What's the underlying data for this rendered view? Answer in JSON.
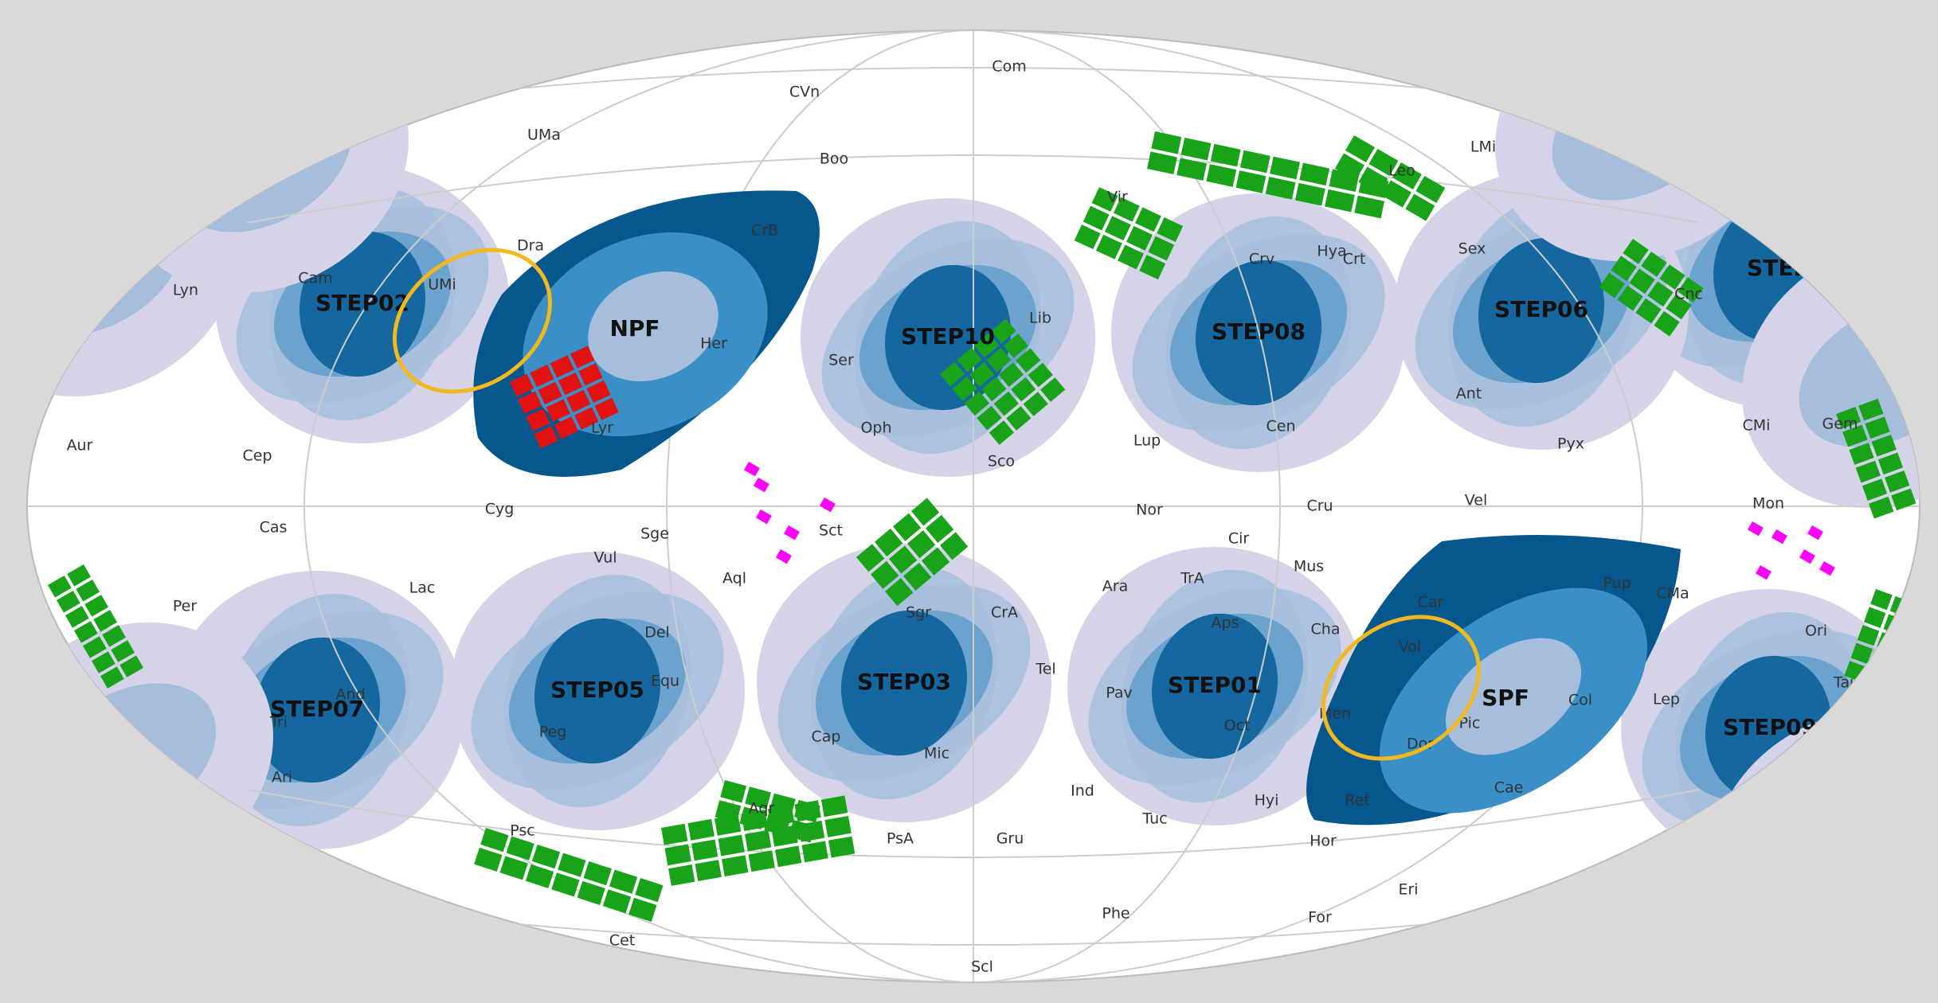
{
  "colors": {
    "background": "#d9d9d9",
    "sky": "#ffffff",
    "grid": "#cccccc",
    "outer": "#d5d3e8",
    "ring2": "#a6bedc",
    "ring3": "#5e9ccb",
    "core": "#15679f",
    "deep": "#05578e",
    "kepler": "#19a319",
    "pointing": "#e31212",
    "magenta": "#ff00ff",
    "marker": "#f2b81f"
  },
  "fields": [
    {
      "id": "step01",
      "label": "STEP01"
    },
    {
      "id": "step02",
      "label": "STEP02"
    },
    {
      "id": "step03",
      "label": "STEP03"
    },
    {
      "id": "step04",
      "label": "STEP04"
    },
    {
      "id": "step05",
      "label": "STEP05"
    },
    {
      "id": "step06",
      "label": "STEP06"
    },
    {
      "id": "step07",
      "label": "STEP07"
    },
    {
      "id": "step08",
      "label": "STEP08"
    },
    {
      "id": "step09",
      "label": "STEP09"
    },
    {
      "id": "step10",
      "label": "STEP10"
    },
    {
      "id": "npf",
      "label": "NPF"
    },
    {
      "id": "spf",
      "label": "SPF"
    }
  ],
  "constellations": [
    "Com",
    "CVn",
    "UMa",
    "Boo",
    "LMi",
    "Leo",
    "Vir",
    "Dra",
    "CrB",
    "Cam",
    "UMi",
    "Lyn",
    "Her",
    "Lib",
    "Ser",
    "Crv",
    "Hya",
    "Crt",
    "Sex",
    "Cnc",
    "Aur",
    "Cep",
    "Lyr",
    "Oph",
    "Sco",
    "Lup",
    "Cen",
    "Ant",
    "Pyx",
    "CMi",
    "Gem",
    "Cyg",
    "Nor",
    "Cru",
    "Vel",
    "Mon",
    "Cas",
    "Sge",
    "Sct",
    "Cir",
    "Mus",
    "Aql",
    "Vul",
    "TrA",
    "Ara",
    "Cha",
    "Car",
    "Pup",
    "CMa",
    "Per",
    "Lac",
    "Del",
    "Sgr",
    "CrA",
    "Aps",
    "Vol",
    "Ori",
    "Equ",
    "Tel",
    "Col",
    "Lep",
    "And",
    "Tri",
    "Pav",
    "Oct",
    "Men",
    "Pic",
    "Tau",
    "Peg",
    "Cap",
    "Mic",
    "Dor",
    "Ari",
    "Ind",
    "Hyi",
    "Ret",
    "Cae",
    "Psc",
    "Aqr",
    "PsA",
    "Gru",
    "Tuc",
    "Hor",
    "Eri",
    "Phe",
    "For",
    "Cet",
    "Scl"
  ]
}
